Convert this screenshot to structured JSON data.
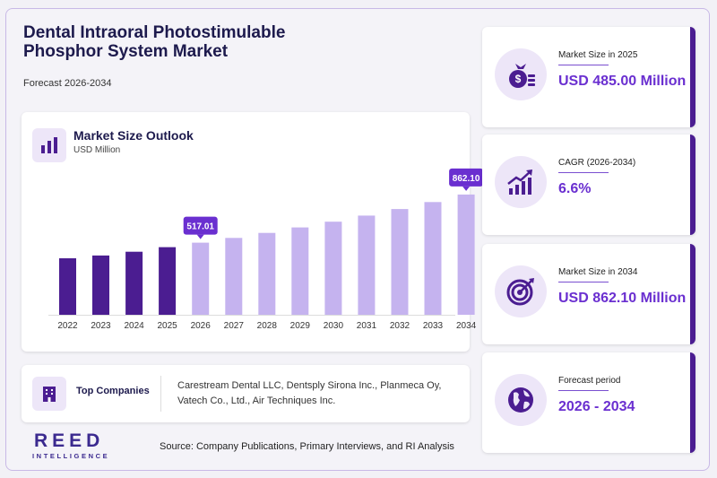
{
  "header": {
    "title": "Dental Intraoral Photostimulable Phosphor System Market",
    "forecast": "Forecast 2026-2034"
  },
  "chart_card": {
    "title": "Market Size Outlook",
    "unit": "USD Million"
  },
  "chart_data": {
    "type": "bar",
    "categories": [
      "2022",
      "2023",
      "2024",
      "2025",
      "2026",
      "2027",
      "2028",
      "2029",
      "2030",
      "2031",
      "2032",
      "2033",
      "2034"
    ],
    "values": [
      405,
      425,
      452,
      485,
      517.01,
      551,
      587,
      626,
      667,
      711,
      758,
      808,
      862.1
    ],
    "callouts": [
      {
        "category": "2026",
        "label": "517.01"
      },
      {
        "category": "2034",
        "label": "862.10"
      }
    ],
    "colors": {
      "historic": "#4b1d91",
      "forecast": "#c5b3ef",
      "callout": "#6a2fd0"
    },
    "historic_through": "2025",
    "ylim": [
      0,
      900
    ]
  },
  "companies": {
    "label": "Top Companies",
    "list": "Carestream Dental LLC, Dentsply Sirona Inc., Planmeca Oy, Vatech Co., Ltd., Air Techniques Inc."
  },
  "stats": [
    {
      "label": "Market Size in 2025",
      "value": "USD 485.00 Million",
      "icon": "money-bag-icon"
    },
    {
      "label": "CAGR (2026-2034)",
      "value": "6.6%",
      "icon": "growth-chart-icon"
    },
    {
      "label": "Market Size in 2034",
      "value": "USD 862.10 Million",
      "icon": "target-icon"
    },
    {
      "label": "Forecast period",
      "value": "2026 - 2034",
      "icon": "globe-icon"
    }
  ],
  "footer": {
    "logo_main": "REED",
    "logo_sub": "INTELLIGENCE",
    "source": "Source: Company Publications, Primary Interviews, and RI Analysis"
  }
}
